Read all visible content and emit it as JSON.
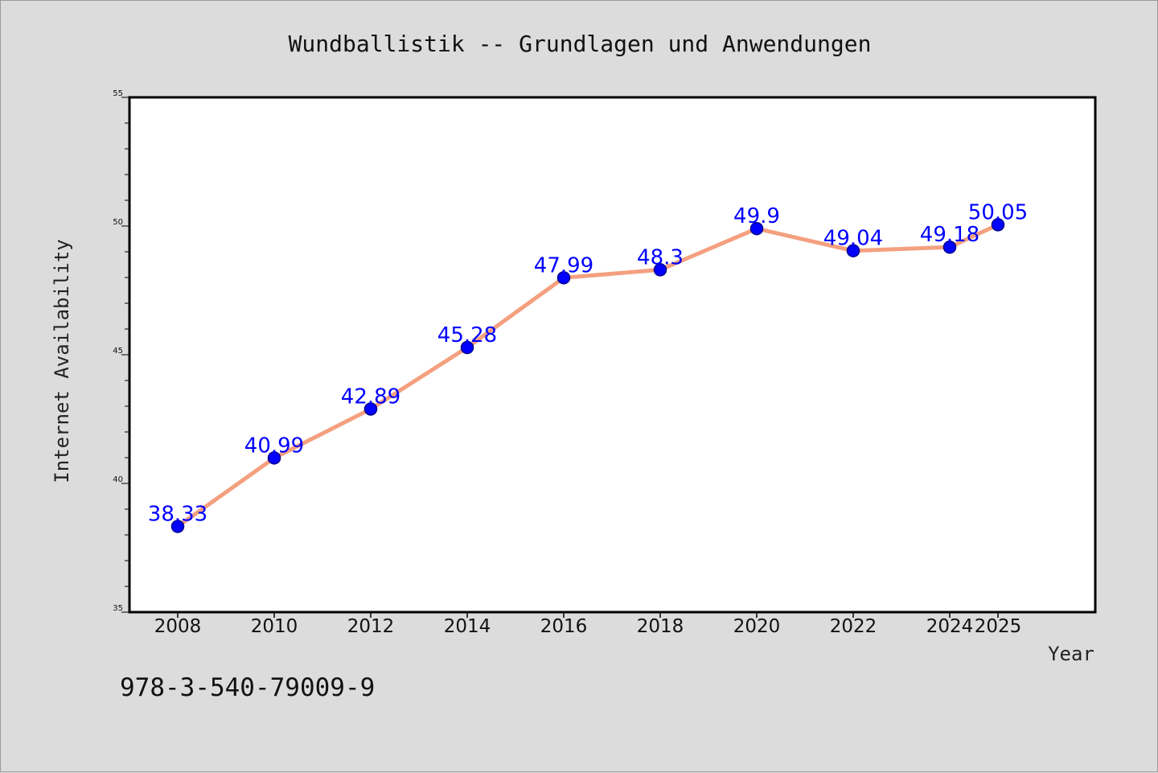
{
  "chart_data": {
    "type": "line",
    "title": "Wundballistik -- Grundlagen und Anwendungen",
    "xlabel": "Year",
    "ylabel": "Internet Availability",
    "x": [
      "2008",
      "2010",
      "2012",
      "2014",
      "2016",
      "2018",
      "2020",
      "2022",
      "2024",
      "2025"
    ],
    "series": [
      {
        "values": [
          38.33,
          40.99,
          42.89,
          45.28,
          47.99,
          48.3,
          49.9,
          49.04,
          49.18,
          50.05
        ],
        "data_labels": [
          "38.33",
          "40.99",
          "42.89",
          "45.28",
          "47.99",
          "48.3",
          "49.9",
          "49.04",
          "49.18",
          "50.05"
        ]
      }
    ],
    "ylim": [
      35,
      55
    ],
    "yticks": [
      "35",
      "40",
      "45",
      "50",
      "55"
    ],
    "grid": false,
    "colors": {
      "line": "#f4a07f",
      "marker": "#0000ff",
      "marker_edge": "#00008b",
      "data_label": "#0000ff",
      "plot_background": "#ffffff",
      "figure_background": "#dcdcdc"
    }
  },
  "footnote": "978-3-540-79009-9"
}
